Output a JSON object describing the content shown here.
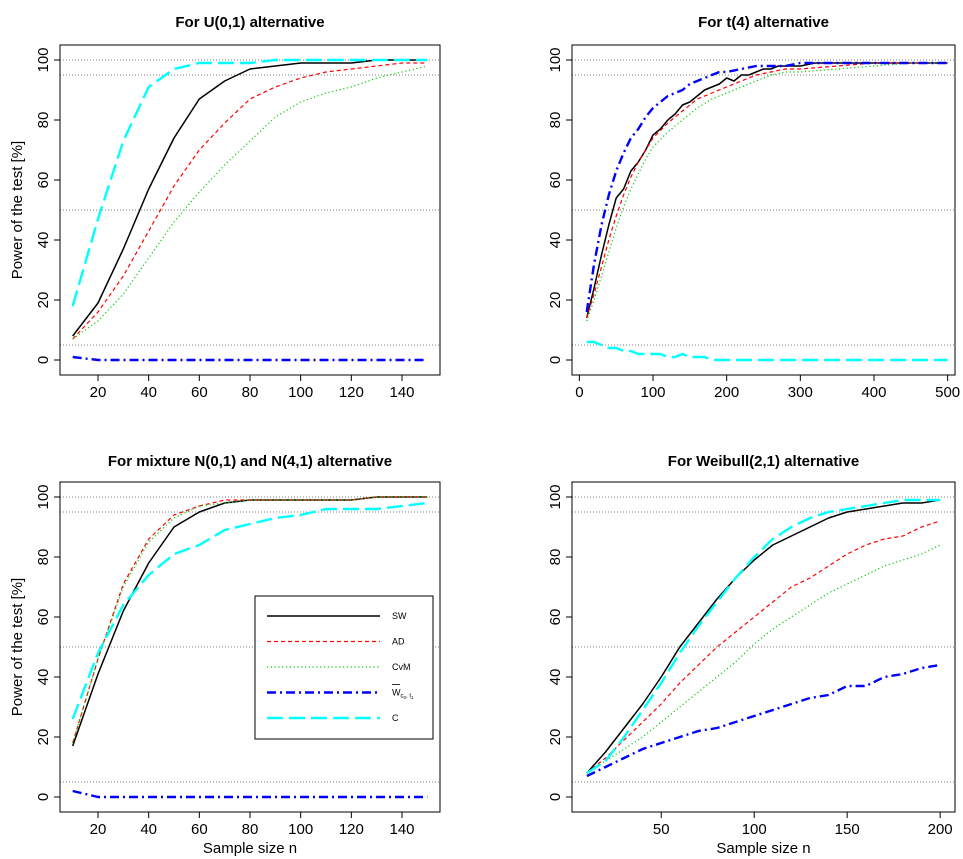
{
  "chart_data": [
    {
      "type": "line",
      "title": "For U(0,1) alternative",
      "xlabel": "",
      "ylabel": "Power of the test [%]",
      "xlim": [
        5,
        155
      ],
      "ylim": [
        -5,
        105
      ],
      "xticks": [
        "20",
        "40",
        "60",
        "80",
        "100",
        "120",
        "140"
      ],
      "yticks": [
        "0",
        "20",
        "40",
        "60",
        "80",
        "100"
      ],
      "reference_lines": [
        5,
        50,
        95,
        100
      ],
      "grid": false,
      "legend": null,
      "series": [
        {
          "key": "SW",
          "x": [
            10,
            20,
            30,
            40,
            50,
            60,
            70,
            80,
            90,
            100,
            110,
            120,
            130,
            140,
            150
          ],
          "values": [
            8,
            19,
            37,
            57,
            74,
            87,
            93,
            97,
            98,
            99,
            99,
            99,
            100,
            100,
            100
          ]
        },
        {
          "key": "AD",
          "x": [
            10,
            20,
            30,
            40,
            50,
            60,
            70,
            80,
            90,
            100,
            110,
            120,
            130,
            140,
            150
          ],
          "values": [
            7,
            16,
            28,
            43,
            58,
            70,
            79,
            87,
            91,
            94,
            96,
            97,
            98,
            99,
            99
          ]
        },
        {
          "key": "CvM",
          "x": [
            10,
            20,
            30,
            40,
            50,
            60,
            70,
            80,
            90,
            100,
            110,
            120,
            130,
            140,
            150
          ],
          "values": [
            7,
            13,
            22,
            34,
            46,
            56,
            65,
            73,
            81,
            86,
            89,
            91,
            94,
            96,
            98
          ]
        },
        {
          "key": "W",
          "x": [
            10,
            20,
            30,
            40,
            50,
            60,
            70,
            80,
            90,
            100,
            110,
            120,
            130,
            140,
            150
          ],
          "values": [
            1,
            0,
            0,
            0,
            0,
            0,
            0,
            0,
            0,
            0,
            0,
            0,
            0,
            0,
            0
          ]
        },
        {
          "key": "C",
          "x": [
            10,
            20,
            30,
            40,
            50,
            60,
            70,
            80,
            90,
            100,
            110,
            120,
            130,
            140,
            150
          ],
          "values": [
            18,
            47,
            73,
            91,
            97,
            99,
            99,
            99,
            100,
            100,
            100,
            100,
            100,
            100,
            100
          ]
        }
      ]
    },
    {
      "type": "line",
      "title": "For t(4) alternative",
      "xlabel": "",
      "ylabel": "",
      "xlim": [
        -10,
        510
      ],
      "ylim": [
        -5,
        105
      ],
      "xticks": [
        "0",
        "100",
        "200",
        "300",
        "400",
        "500"
      ],
      "yticks": [
        "0",
        "20",
        "40",
        "60",
        "80",
        "100"
      ],
      "reference_lines": [
        5,
        50,
        95,
        100
      ],
      "grid": false,
      "legend": null,
      "series": [
        {
          "key": "SW",
          "x": [
            10,
            20,
            30,
            40,
            50,
            60,
            70,
            80,
            90,
            100,
            110,
            120,
            130,
            140,
            150,
            160,
            170,
            180,
            190,
            200,
            210,
            220,
            230,
            240,
            250,
            260,
            270,
            280,
            290,
            300,
            320,
            340,
            360,
            380,
            400,
            450,
            500
          ],
          "values": [
            14,
            24,
            35,
            45,
            54,
            57,
            63,
            66,
            70,
            75,
            77,
            80,
            82,
            85,
            86,
            88,
            90,
            91,
            92,
            94,
            93,
            95,
            95,
            96,
            97,
            97,
            98,
            98,
            98,
            98,
            99,
            99,
            99,
            99,
            99,
            99,
            99
          ]
        },
        {
          "key": "AD",
          "x": [
            10,
            20,
            30,
            40,
            50,
            60,
            70,
            80,
            90,
            100,
            120,
            140,
            160,
            180,
            200,
            220,
            240,
            260,
            280,
            300,
            350,
            400,
            450,
            500
          ],
          "values": [
            14,
            22,
            31,
            40,
            48,
            55,
            61,
            66,
            70,
            74,
            79,
            83,
            87,
            89,
            91,
            93,
            95,
            96,
            97,
            97,
            98,
            99,
            99,
            99
          ]
        },
        {
          "key": "CvM",
          "x": [
            10,
            20,
            30,
            40,
            50,
            60,
            70,
            80,
            90,
            100,
            120,
            140,
            160,
            180,
            200,
            220,
            240,
            260,
            280,
            300,
            350,
            400,
            450,
            500
          ],
          "values": [
            13,
            20,
            28,
            36,
            44,
            51,
            57,
            62,
            67,
            71,
            76,
            80,
            84,
            87,
            89,
            91,
            93,
            95,
            96,
            96,
            97,
            98,
            99,
            99
          ]
        },
        {
          "key": "W",
          "x": [
            10,
            20,
            30,
            40,
            50,
            60,
            70,
            80,
            90,
            100,
            110,
            120,
            130,
            140,
            150,
            160,
            170,
            180,
            190,
            200,
            220,
            240,
            260,
            280,
            300,
            350,
            400,
            450,
            500
          ],
          "values": [
            16,
            32,
            45,
            55,
            63,
            69,
            74,
            77,
            81,
            84,
            86,
            88,
            89,
            90,
            92,
            93,
            94,
            95,
            96,
            96,
            97,
            98,
            98,
            98,
            99,
            99,
            99,
            99,
            99
          ]
        },
        {
          "key": "C",
          "x": [
            10,
            20,
            30,
            40,
            50,
            60,
            70,
            80,
            90,
            100,
            110,
            120,
            130,
            140,
            150,
            160,
            170,
            180,
            200,
            220,
            240,
            260,
            300,
            350,
            400,
            450,
            500
          ],
          "values": [
            6,
            6,
            5,
            4,
            4,
            3,
            3,
            2,
            2,
            2,
            2,
            1,
            1,
            2,
            1,
            1,
            1,
            0,
            0,
            0,
            0,
            0,
            0,
            0,
            0,
            0,
            0
          ]
        }
      ]
    },
    {
      "type": "line",
      "title": "For mixture N(0,1) and N(4,1) alternative",
      "xlabel": "Sample size n",
      "ylabel": "Power of the test [%]",
      "xlim": [
        5,
        155
      ],
      "ylim": [
        -5,
        105
      ],
      "xticks": [
        "20",
        "40",
        "60",
        "80",
        "100",
        "120",
        "140"
      ],
      "yticks": [
        "0",
        "20",
        "40",
        "60",
        "80",
        "100"
      ],
      "reference_lines": [
        5,
        50,
        95,
        100
      ],
      "grid": false,
      "legend": {
        "placement": "right-middle",
        "entries": [
          "SW",
          "AD",
          "CvM",
          "W",
          "C"
        ],
        "w_symbol": "W",
        "w_sub_c": "c",
        "w_sub_c_idx": "0",
        "w_sub_sep": ", t",
        "w_sub_t_idx": "1"
      },
      "series": [
        {
          "key": "SW",
          "x": [
            10,
            20,
            30,
            40,
            50,
            60,
            70,
            80,
            90,
            100,
            110,
            120,
            130,
            140,
            150
          ],
          "values": [
            17,
            41,
            62,
            78,
            90,
            95,
            98,
            99,
            99,
            99,
            99,
            99,
            100,
            100,
            100
          ]
        },
        {
          "key": "AD",
          "x": [
            10,
            20,
            30,
            40,
            50,
            60,
            70,
            80,
            90,
            100,
            110,
            120,
            130,
            140,
            150
          ],
          "values": [
            18,
            46,
            71,
            86,
            94,
            97,
            99,
            99,
            99,
            99,
            99,
            99,
            100,
            100,
            100
          ]
        },
        {
          "key": "CvM",
          "x": [
            10,
            20,
            30,
            40,
            50,
            60,
            70,
            80,
            90,
            100,
            110,
            120,
            130,
            140,
            150
          ],
          "values": [
            18,
            46,
            70,
            85,
            93,
            97,
            98,
            99,
            99,
            99,
            99,
            99,
            100,
            100,
            100
          ]
        },
        {
          "key": "W",
          "x": [
            10,
            20,
            30,
            40,
            50,
            60,
            70,
            80,
            90,
            100,
            110,
            120,
            130,
            140,
            150
          ],
          "values": [
            2,
            0,
            0,
            0,
            0,
            0,
            0,
            0,
            0,
            0,
            0,
            0,
            0,
            0,
            0
          ]
        },
        {
          "key": "C",
          "x": [
            10,
            20,
            30,
            40,
            50,
            60,
            70,
            80,
            90,
            100,
            110,
            120,
            130,
            140,
            150
          ],
          "values": [
            26,
            48,
            64,
            74,
            81,
            84,
            89,
            91,
            93,
            94,
            96,
            96,
            96,
            97,
            98
          ]
        }
      ]
    },
    {
      "type": "line",
      "title": "For Weibull(2,1) alternative",
      "xlabel": "Sample size n",
      "ylabel": "",
      "xlim": [
        2,
        208
      ],
      "ylim": [
        -5,
        105
      ],
      "xticks": [
        "50",
        "100",
        "150",
        "200"
      ],
      "yticks": [
        "0",
        "20",
        "40",
        "60",
        "80",
        "100"
      ],
      "reference_lines": [
        5,
        50,
        95,
        100
      ],
      "grid": false,
      "legend": null,
      "series": [
        {
          "key": "SW",
          "x": [
            10,
            20,
            30,
            40,
            50,
            60,
            70,
            80,
            90,
            100,
            110,
            120,
            130,
            140,
            150,
            160,
            170,
            180,
            190,
            200
          ],
          "values": [
            8,
            15,
            23,
            31,
            40,
            50,
            58,
            66,
            73,
            79,
            84,
            87,
            90,
            93,
            95,
            96,
            97,
            98,
            98,
            99
          ]
        },
        {
          "key": "AD",
          "x": [
            10,
            20,
            30,
            40,
            50,
            60,
            70,
            80,
            90,
            100,
            110,
            120,
            130,
            140,
            150,
            160,
            170,
            180,
            190,
            200
          ],
          "values": [
            8,
            13,
            19,
            25,
            31,
            38,
            44,
            50,
            55,
            60,
            65,
            70,
            73,
            77,
            81,
            84,
            86,
            87,
            90,
            92
          ]
        },
        {
          "key": "CvM",
          "x": [
            10,
            20,
            30,
            40,
            50,
            60,
            70,
            80,
            90,
            100,
            110,
            120,
            130,
            140,
            150,
            160,
            170,
            180,
            190,
            200
          ],
          "values": [
            8,
            12,
            16,
            20,
            25,
            30,
            35,
            40,
            45,
            51,
            56,
            60,
            64,
            68,
            71,
            74,
            77,
            79,
            81,
            84
          ]
        },
        {
          "key": "W",
          "x": [
            10,
            20,
            30,
            40,
            50,
            60,
            70,
            80,
            90,
            100,
            110,
            120,
            130,
            140,
            150,
            160,
            170,
            180,
            190,
            200
          ],
          "values": [
            7,
            10,
            13,
            16,
            18,
            20,
            22,
            23,
            25,
            27,
            29,
            31,
            33,
            34,
            37,
            37,
            40,
            41,
            43,
            44
          ]
        },
        {
          "key": "C",
          "x": [
            10,
            20,
            30,
            40,
            50,
            60,
            70,
            80,
            90,
            100,
            110,
            120,
            130,
            140,
            150,
            160,
            170,
            180,
            190,
            200
          ],
          "values": [
            8,
            12,
            20,
            29,
            38,
            48,
            57,
            65,
            73,
            80,
            86,
            90,
            93,
            95,
            96,
            97,
            98,
            99,
            99,
            99
          ]
        }
      ]
    }
  ],
  "series_styles": {
    "SW": {
      "color": "#000000",
      "width": 1.5,
      "dash": ""
    },
    "AD": {
      "color": "#ff0000",
      "width": 1.2,
      "dash": "4 3"
    },
    "CvM": {
      "color": "#00cd00",
      "width": 1.2,
      "dash": "1.2 2.6"
    },
    "W": {
      "color": "#0000ff",
      "width": 2.4,
      "dash": "9 4 2 4"
    },
    "C": {
      "color": "#00ffff",
      "width": 2.4,
      "dash": "16 6"
    }
  },
  "reference_line_color": "#555555"
}
